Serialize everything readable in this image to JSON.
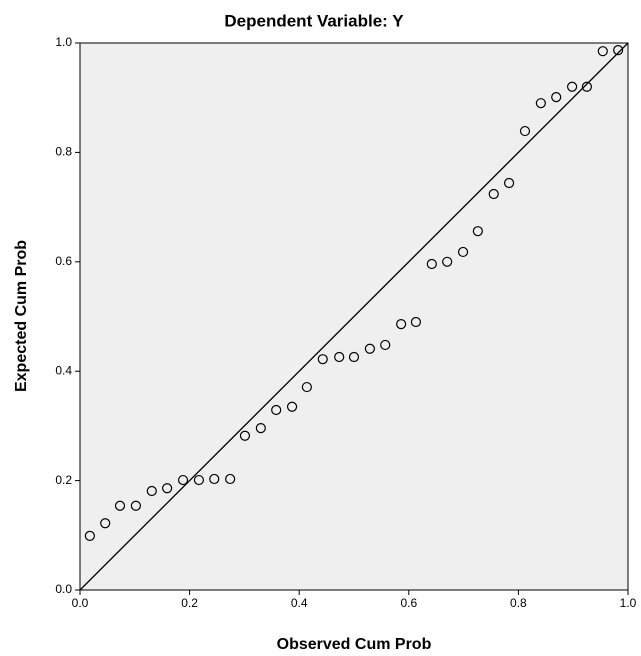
{
  "chart_data": {
    "type": "scatter",
    "title": "Dependent Variable: Y",
    "x_label": "Observed Cum Prob",
    "y_label": "Expected Cum Prob",
    "x": [
      0.018,
      0.046,
      0.073,
      0.102,
      0.131,
      0.159,
      0.188,
      0.217,
      0.245,
      0.274,
      0.301,
      0.33,
      0.358,
      0.387,
      0.414,
      0.443,
      0.473,
      0.5,
      0.529,
      0.557,
      0.586,
      0.613,
      0.642,
      0.67,
      0.699,
      0.726,
      0.755,
      0.783,
      0.812,
      0.841,
      0.869,
      0.898,
      0.925,
      0.954,
      0.982
    ],
    "values": [
      0.099,
      0.122,
      0.154,
      0.154,
      0.181,
      0.186,
      0.201,
      0.201,
      0.203,
      0.203,
      0.282,
      0.296,
      0.329,
      0.335,
      0.371,
      0.422,
      0.426,
      0.426,
      0.441,
      0.448,
      0.486,
      0.49,
      0.596,
      0.6,
      0.618,
      0.656,
      0.724,
      0.744,
      0.839,
      0.89,
      0.901,
      0.92,
      0.92,
      0.985,
      0.987
    ],
    "color": "#000000",
    "xlim": [
      0,
      1
    ],
    "ylim": [
      0,
      1
    ],
    "xticks": [
      {
        "value": 0,
        "label": "0.0"
      },
      0.2,
      0.4,
      0.6,
      0.8,
      {
        "value": 1,
        "label": "1.0"
      }
    ],
    "yticks": [
      {
        "value": 0,
        "label": "0.0"
      },
      0.2,
      0.4,
      0.6,
      0.8,
      {
        "value": 1,
        "label": "1.0"
      }
    ]
  }
}
